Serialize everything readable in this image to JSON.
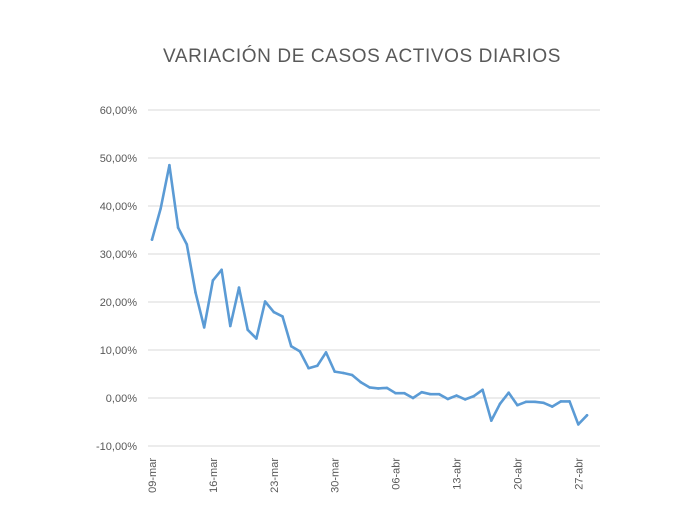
{
  "chart_data": {
    "type": "line",
    "title": "VARIACIÓN DE CASOS ACTIVOS DIARIOS",
    "xlabel": "",
    "ylabel": "",
    "ylim": [
      -0.1,
      0.6
    ],
    "y_ticks": [
      0.6,
      0.5,
      0.4,
      0.3,
      0.2,
      0.1,
      0.0,
      -0.1
    ],
    "y_tick_labels": [
      "60,00%",
      "50,00%",
      "40,00%",
      "30,00%",
      "20,00%",
      "10,00%",
      "0,00%",
      "-10,00%"
    ],
    "x_tick_labels": [
      "09-mar",
      "16-mar",
      "23-mar",
      "30-mar",
      "06-abr",
      "13-abr",
      "20-abr",
      "27-abr"
    ],
    "x_tick_index": [
      0,
      7,
      14,
      21,
      28,
      35,
      42,
      49
    ],
    "grid": true,
    "legend": "none",
    "color": "#5b9bd5",
    "x": [
      "09-mar",
      "10-mar",
      "11-mar",
      "12-mar",
      "13-mar",
      "14-mar",
      "15-mar",
      "16-mar",
      "17-mar",
      "18-mar",
      "19-mar",
      "20-mar",
      "21-mar",
      "22-mar",
      "23-mar",
      "24-mar",
      "25-mar",
      "26-mar",
      "27-mar",
      "28-mar",
      "29-mar",
      "30-mar",
      "31-mar",
      "01-abr",
      "02-abr",
      "03-abr",
      "04-abr",
      "05-abr",
      "06-abr",
      "07-abr",
      "08-abr",
      "09-abr",
      "10-abr",
      "11-abr",
      "12-abr",
      "13-abr",
      "14-abr",
      "15-abr",
      "16-abr",
      "17-abr",
      "18-abr",
      "19-abr",
      "20-abr",
      "21-abr",
      "22-abr",
      "23-abr",
      "24-abr",
      "25-abr",
      "26-abr",
      "27-abr",
      "28-abr"
    ],
    "values": [
      0.33,
      0.395,
      0.485,
      0.355,
      0.32,
      0.22,
      0.147,
      0.245,
      0.267,
      0.15,
      0.23,
      0.142,
      0.124,
      0.201,
      0.179,
      0.17,
      0.108,
      0.097,
      0.062,
      0.067,
      0.095,
      0.055,
      0.052,
      0.048,
      0.033,
      0.022,
      0.02,
      0.021,
      0.01,
      0.01,
      0.0,
      0.012,
      0.008,
      0.008,
      -0.002,
      0.005,
      -0.003,
      0.004,
      0.017,
      -0.047,
      -0.012,
      0.011,
      -0.015,
      -0.008,
      -0.008,
      -0.01,
      -0.018,
      -0.007,
      -0.007,
      -0.055,
      -0.036
    ]
  }
}
